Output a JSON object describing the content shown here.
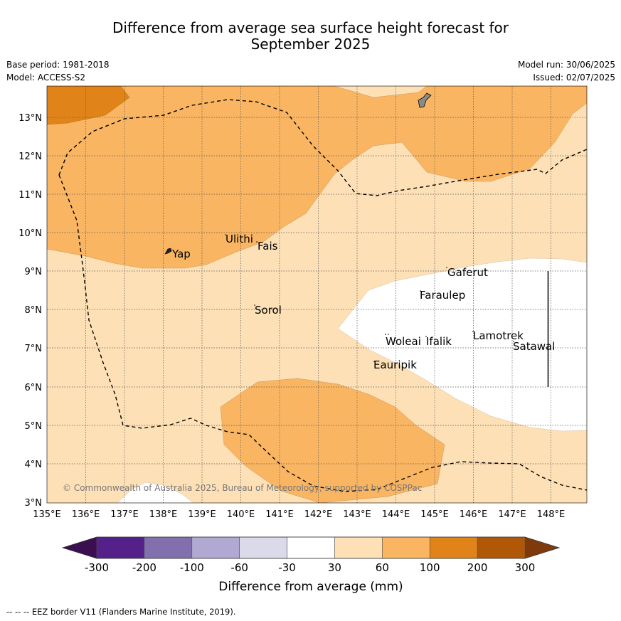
{
  "title_line1": "Difference from average sea surface height forecast for",
  "title_line2": "September 2025",
  "base_period": "Base period: 1981-2018",
  "model": "Model: ACCESS-S2",
  "model_run": "Model run: 30/06/2025",
  "issued": "Issued: 02/07/2025",
  "copyright": "© Commonwealth of Australia 2025, Bureau of Meteorology, supported by COSPPac",
  "places": {
    "yap": "Yap",
    "ulithi": "Ulithi",
    "fais": "Fais",
    "sorol": "Sorol",
    "gaferut": "Gaferut",
    "faraulep": "Faraulep",
    "woleai": "Woleai",
    "ifalik": "Ifalik",
    "lamotrek": "Lamotrek",
    "satawal": "Satawal",
    "eauripik": "Eauripik"
  },
  "lon_ticks": [
    "135°E",
    "136°E",
    "137°E",
    "138°E",
    "139°E",
    "140°E",
    "141°E",
    "142°E",
    "143°E",
    "144°E",
    "145°E",
    "146°E",
    "147°E",
    "148°E"
  ],
  "lat_ticks": [
    "3°N",
    "4°N",
    "5°N",
    "6°N",
    "7°N",
    "8°N",
    "9°N",
    "10°N",
    "11°N",
    "12°N",
    "13°N"
  ],
  "colorbar": {
    "label": "Difference from average (mm)",
    "ticks": [
      "-300",
      "-200",
      "-100",
      "-60",
      "-30",
      "30",
      "60",
      "100",
      "200",
      "300"
    ],
    "colors": [
      "#3b0f4f",
      "#54208a",
      "#8170ad",
      "#b1a9d2",
      "#dbdaeb",
      "#ffffff",
      "#fde0b6",
      "#f9b562",
      "#e0841a",
      "#b05808",
      "#7e3a0a"
    ]
  },
  "legend": {
    "line_style": "--  --  --",
    "text": "EEZ border V11 (Flanders Marine Institute, 2019)."
  }
}
